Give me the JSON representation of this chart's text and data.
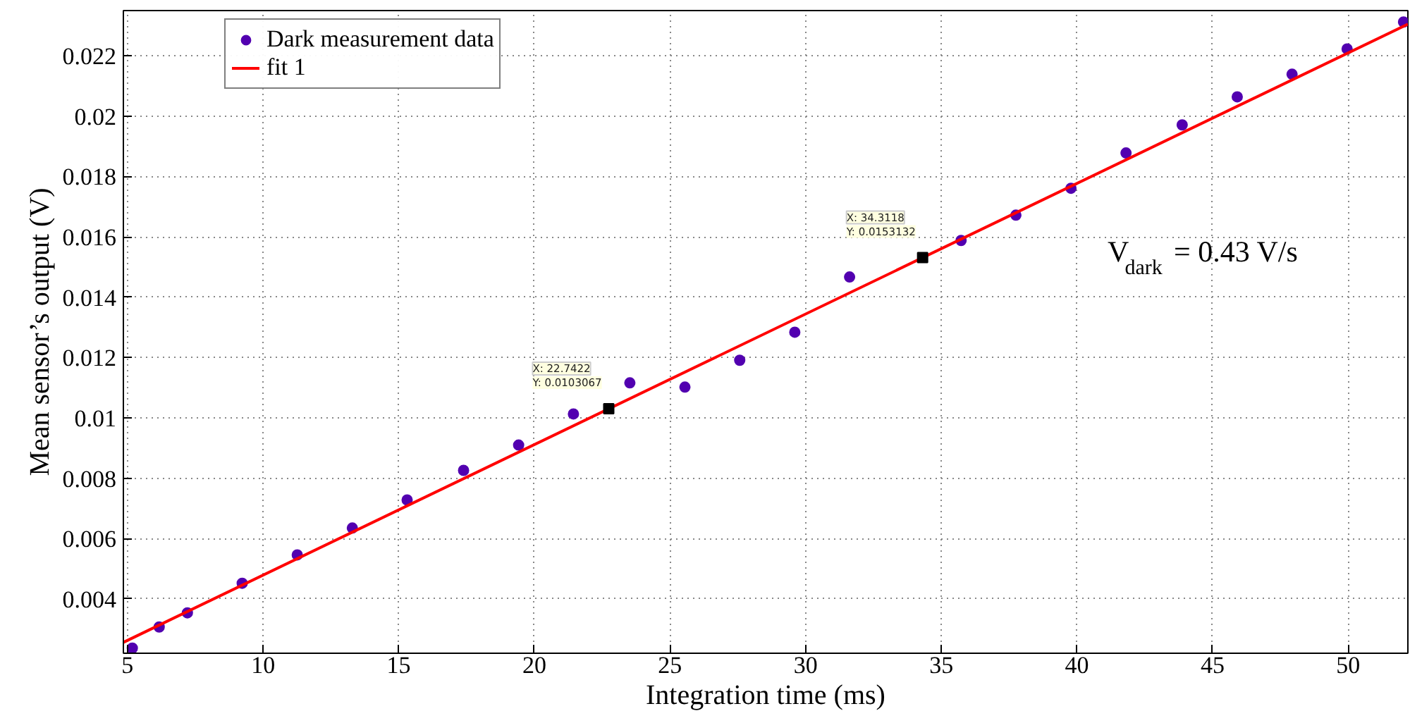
{
  "chart_data": {
    "type": "scatter",
    "xlabel": "Integration time (ms)",
    "ylabel": "Mean sensor’s output (V)",
    "xlim": [
      4.85,
      52.2
    ],
    "ylim": [
      0.0022,
      0.0235
    ],
    "xticks": [
      5,
      10,
      15,
      20,
      25,
      30,
      35,
      40,
      45,
      50
    ],
    "yticks": [
      0.004,
      0.006,
      0.008,
      0.01,
      0.012,
      0.014,
      0.016,
      0.018,
      0.02,
      0.022
    ],
    "grid": true,
    "legend": "top left",
    "series": [
      {
        "name": "Dark measurement data",
        "marker": "circle",
        "color": "#5200b0",
        "x": [
          5.18,
          6.17,
          7.21,
          9.23,
          11.26,
          13.29,
          15.31,
          17.39,
          19.42,
          21.44,
          23.52,
          25.55,
          27.57,
          29.6,
          31.62,
          35.73,
          37.75,
          39.78,
          41.81,
          43.88,
          45.91,
          47.93,
          49.96,
          52.04
        ],
        "values": [
          0.00237,
          0.00307,
          0.00354,
          0.00452,
          0.00546,
          0.00635,
          0.00728,
          0.00826,
          0.0091,
          0.01013,
          0.01116,
          0.01102,
          0.01191,
          0.01284,
          0.01467,
          0.01588,
          0.01672,
          0.01761,
          0.01878,
          0.01971,
          0.02064,
          0.02139,
          0.02223,
          0.02312
        ]
      },
      {
        "name": "fit 1",
        "type": "line",
        "color": "#ff0000",
        "x": [
          4.85,
          52.2
        ],
        "values": [
          0.00256,
          0.02305
        ]
      }
    ],
    "annotations": [
      {
        "text": "X: 22.7422\nY: 0.0103067",
        "x": 22.7422,
        "y": 0.0103067
      },
      {
        "text": "X: 34.3118\nY: 0.0153132",
        "x": 34.3118,
        "y": 0.0153132
      },
      "V$_{dark}$ = 0.43 V/s"
    ]
  }
}
